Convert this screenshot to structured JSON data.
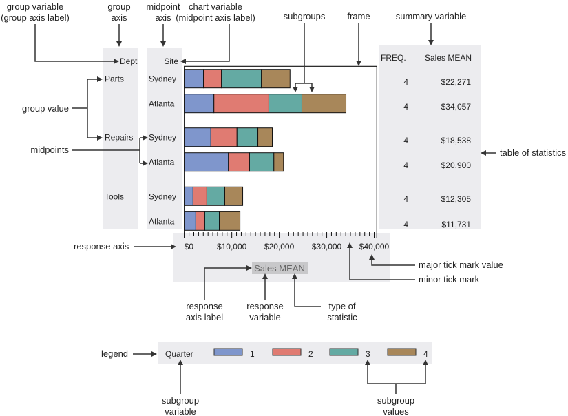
{
  "annotations": {
    "group_variable": [
      "group variable",
      "(group axis label)"
    ],
    "group_axis": [
      "group",
      "axis"
    ],
    "midpoint_axis": [
      "midpoint",
      "axis"
    ],
    "chart_variable": [
      "chart variable",
      "(midpoint axis label)"
    ],
    "subgroups": "subgroups",
    "frame": "frame",
    "summary_variable": "summary variable",
    "table_of_statistics": "table of statistics",
    "group_value": "group value",
    "midpoints": "midpoints",
    "response_axis": "response axis",
    "major_tick_mark_value": "major tick mark value",
    "minor_tick_mark": "minor tick mark",
    "response_axis_label": [
      "response",
      "axis label"
    ],
    "response_variable": [
      "response",
      "variable"
    ],
    "type_of_statistic": [
      "type of",
      "statistic"
    ],
    "legend": "legend",
    "subgroup_variable": [
      "subgroup",
      "variable"
    ],
    "subgroup_values": [
      "subgroup",
      "values"
    ]
  },
  "chart_data": {
    "type": "bar",
    "orientation": "horizontal-stacked",
    "group_label": "Dept",
    "midpoint_label": "Site",
    "response_label": "Sales MEAN",
    "xlim": [
      0,
      40000
    ],
    "major_tick_step": 10000,
    "minor_tick_step": 1000,
    "tick_labels": [
      "$0",
      "$10,000",
      "$20,000",
      "$30,000",
      "$40,000"
    ],
    "subgroup_label": "Quarter",
    "subgroups": [
      "1",
      "2",
      "3",
      "4"
    ],
    "subgroup_colors": [
      "#7f96cc",
      "#e07b72",
      "#64aaa3",
      "#a8875a"
    ],
    "groups": [
      {
        "name": "Parts",
        "rows": [
          {
            "site": "Sydney",
            "values": [
              4036,
              3793,
              8413,
              6029
            ]
          },
          {
            "site": "Atlanta",
            "values": [
              6240,
              11565,
              6965,
              9287
            ]
          }
        ]
      },
      {
        "name": "Repairs",
        "rows": [
          {
            "site": "Sydney",
            "values": [
              5600,
              5503,
              4393,
              3042
            ]
          },
          {
            "site": "Atlanta",
            "values": [
              9289,
              4451,
              5128,
              2032
            ]
          }
        ]
      },
      {
        "name": "Tools",
        "rows": [
          {
            "site": "Sydney",
            "values": [
              1841,
              2907,
              3779,
              3778
            ]
          },
          {
            "site": "Atlanta",
            "values": [
              2424,
              1890,
              3054,
              4363
            ]
          }
        ]
      }
    ],
    "stats": {
      "headers": [
        "FREQ.",
        "Sales MEAN"
      ],
      "rows": [
        [
          "4",
          "$22,271"
        ],
        [
          "4",
          "$34,057"
        ],
        [
          "4",
          "$18,538"
        ],
        [
          "4",
          "$20,900"
        ],
        [
          "4",
          "$12,305"
        ],
        [
          "4",
          "$11,731"
        ]
      ]
    }
  }
}
